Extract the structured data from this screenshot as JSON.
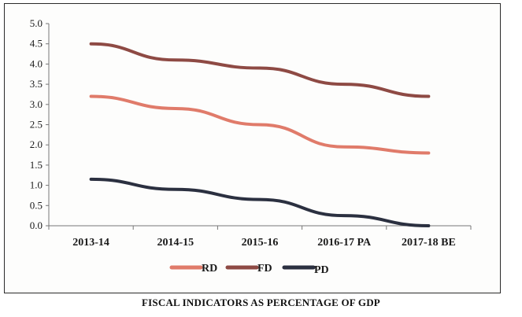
{
  "chart_data": {
    "type": "line",
    "title": "FISCAL INDICATORS AS PERCENTAGE OF GDP",
    "categories": [
      "2013-14",
      "2014-15",
      "2015-16",
      "2016-17 PA",
      "2017-18 BE"
    ],
    "ylim": [
      0,
      5.0
    ],
    "yticks": [
      "0.0",
      "0.5",
      "1.0",
      "1.5",
      "2.0",
      "2.5",
      "3.0",
      "3.5",
      "4.0",
      "4.5",
      "5.0"
    ],
    "grid": false,
    "legend_position": "bottom",
    "series": [
      {
        "name": "RD",
        "values": [
          3.2,
          2.9,
          2.5,
          1.95,
          1.8
        ],
        "color": "#e07b6a"
      },
      {
        "name": "FD",
        "values": [
          4.5,
          4.1,
          3.9,
          3.5,
          3.2
        ],
        "color": "#8e4a44"
      },
      {
        "name": "PD",
        "values": [
          1.15,
          0.9,
          0.65,
          0.25,
          0.0
        ],
        "color": "#2b3040"
      }
    ]
  }
}
